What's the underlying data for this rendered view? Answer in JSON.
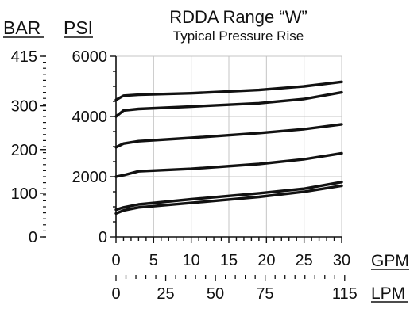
{
  "chart_data": {
    "type": "line",
    "title": "RDDA Range “W”",
    "subtitle": "Typical Pressure Rise",
    "left_axes": {
      "bar": {
        "label": "BAR",
        "ticks": [
          "415",
          "300",
          "200",
          "100",
          "0"
        ],
        "tick_values_psi": [
          6000,
          4351,
          2901,
          1450,
          0
        ]
      },
      "psi": {
        "label": "PSI",
        "ticks": [
          "6000",
          "4000",
          "2000",
          "0"
        ],
        "ylim": [
          0,
          6000
        ]
      }
    },
    "bottom_axes": {
      "gpm": {
        "label": "GPM",
        "ticks": [
          "0",
          "5",
          "10",
          "15",
          "20",
          "25",
          "30"
        ],
        "xlim": [
          0,
          30
        ]
      },
      "lpm": {
        "label": "LPM",
        "ticks": [
          "0",
          "25",
          "50",
          "75",
          "115"
        ],
        "tick_values_gpm": [
          0,
          6.6,
          13.2,
          19.8,
          30.4
        ]
      }
    },
    "grid": true,
    "series": [
      {
        "x": [
          0,
          1,
          3,
          10,
          19,
          25,
          30
        ],
        "values": [
          4550,
          4690,
          4720,
          4770,
          4880,
          5000,
          5150
        ]
      },
      {
        "x": [
          0,
          1,
          3,
          10,
          19,
          25,
          30
        ],
        "values": [
          4000,
          4200,
          4250,
          4330,
          4440,
          4580,
          4800
        ]
      },
      {
        "x": [
          0,
          1,
          3,
          10,
          19,
          25,
          30
        ],
        "values": [
          2980,
          3100,
          3180,
          3290,
          3450,
          3580,
          3740
        ]
      },
      {
        "x": [
          0,
          1,
          3,
          10,
          19,
          25,
          30
        ],
        "values": [
          2000,
          2050,
          2180,
          2260,
          2420,
          2580,
          2780
        ]
      },
      {
        "x": [
          0,
          1,
          3,
          10,
          19,
          25,
          30
        ],
        "values": [
          900,
          980,
          1080,
          1250,
          1450,
          1600,
          1820
        ]
      },
      {
        "x": [
          0,
          1,
          3,
          10,
          19,
          25,
          30
        ],
        "values": [
          780,
          880,
          980,
          1130,
          1330,
          1500,
          1700
        ]
      }
    ]
  }
}
